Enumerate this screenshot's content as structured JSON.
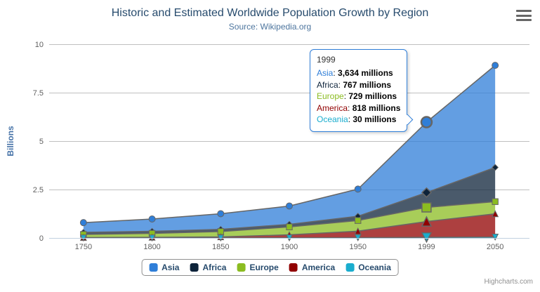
{
  "credits": "Highcharts.com",
  "colors": {
    "title": "#274b6d",
    "subtitle": "#4d759e",
    "axis_label": "#606060",
    "y_axis_title": "#4572a7",
    "legend_text": "#274b6d",
    "grid_line": "#c0c0c0",
    "axis_line": "#c0d0e0",
    "series_outline": "#666666",
    "menu_icon": "#666666"
  },
  "chart_data": {
    "type": "area",
    "stacking": "normal",
    "title": "Historic and Estimated Worldwide Population Growth by Region",
    "subtitle": "Source: Wikipedia.org",
    "categories": [
      "1750",
      "1800",
      "1850",
      "1900",
      "1950",
      "1999",
      "2050"
    ],
    "series": [
      {
        "name": "Asia",
        "color": "#2f7ed8",
        "marker": "circle",
        "values": [
          502,
          635,
          809,
          947,
          1402,
          3634,
          5268
        ]
      },
      {
        "name": "Africa",
        "color": "#0d233a",
        "marker": "diamond",
        "values": [
          106,
          107,
          111,
          133,
          221,
          767,
          1766
        ]
      },
      {
        "name": "Europe",
        "color": "#8bbc21",
        "marker": "square",
        "values": [
          163,
          203,
          276,
          408,
          547,
          729,
          628
        ]
      },
      {
        "name": "America",
        "color": "#910000",
        "marker": "triangle",
        "values": [
          18,
          31,
          54,
          156,
          339,
          818,
          1201
        ]
      },
      {
        "name": "Oceania",
        "color": "#1aadce",
        "marker": "triangle-down",
        "values": [
          2,
          2,
          2,
          6,
          13,
          30,
          46
        ]
      }
    ],
    "value_unit": "millions",
    "ylabel": "Billions",
    "ylim": [
      0,
      10
    ],
    "yticks": [
      0,
      2.5,
      5,
      7.5,
      10
    ],
    "grid": true,
    "legend_position": "bottom",
    "hover_category": "1999"
  },
  "tooltip": {
    "header": "1999",
    "border_color": "#2f7ed8",
    "unit": "millions",
    "rows": [
      {
        "name": "Asia",
        "color": "#2f7ed8",
        "value": "3,634"
      },
      {
        "name": "Africa",
        "color": "#0d233a",
        "value": "767"
      },
      {
        "name": "Europe",
        "color": "#8bbc21",
        "value": "729"
      },
      {
        "name": "America",
        "color": "#910000",
        "value": "818"
      },
      {
        "name": "Oceania",
        "color": "#1aadce",
        "value": "30"
      }
    ]
  }
}
